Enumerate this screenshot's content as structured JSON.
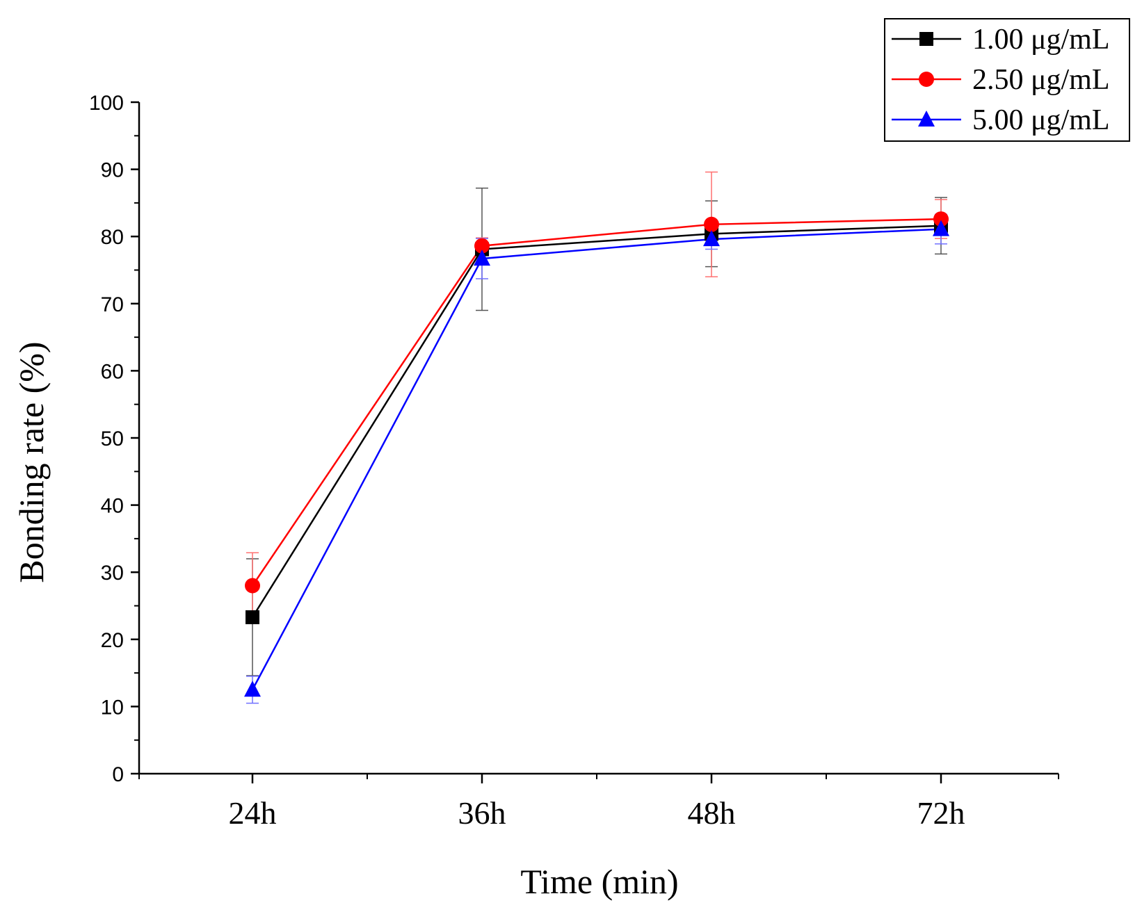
{
  "chart_data": {
    "type": "line",
    "title": "",
    "xlabel": "Time (min)",
    "ylabel": "Bonding rate (%)",
    "categories": [
      "24h",
      "36h",
      "48h",
      "72h"
    ],
    "ylim": [
      0,
      100
    ],
    "yticks": [
      0,
      10,
      20,
      30,
      40,
      50,
      60,
      70,
      80,
      90,
      100
    ],
    "grid": false,
    "legend_position": "top-right",
    "series": [
      {
        "name": "1.00 μg/mL",
        "color": "#000000",
        "marker": "square",
        "values": [
          23.3,
          78.1,
          80.4,
          81.6
        ],
        "errors": [
          8.7,
          9.1,
          4.9,
          4.2
        ]
      },
      {
        "name": "2.50 μg/mL",
        "color": "#ff0000",
        "marker": "circle",
        "values": [
          28.0,
          78.6,
          81.8,
          82.6
        ],
        "errors": [
          4.9,
          1.2,
          7.8,
          2.9
        ]
      },
      {
        "name": "5.00 μg/mL",
        "color": "#0000ff",
        "marker": "triangle",
        "values": [
          12.5,
          76.7,
          79.6,
          81.1
        ],
        "errors": [
          2.0,
          3.0,
          1.5,
          2.2
        ]
      }
    ]
  }
}
